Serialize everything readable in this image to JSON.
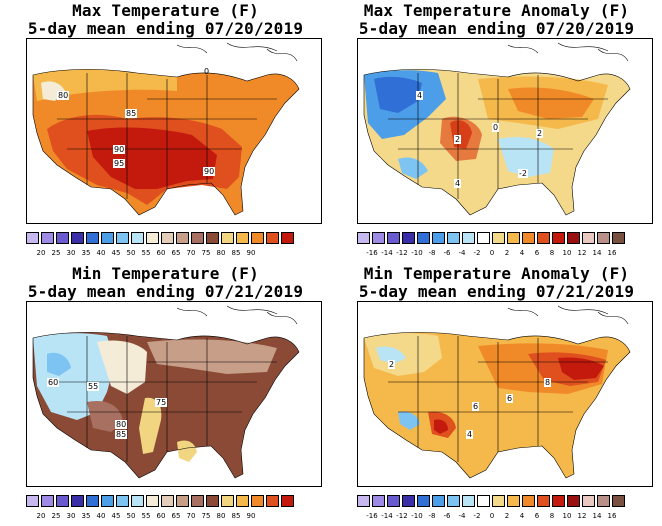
{
  "panels": [
    {
      "title_line1": "Max Temperature (F)",
      "title_line2": "5-day mean ending 07/20/2019",
      "colorbar_colors": [
        "#c7b8f0",
        "#9f8ae6",
        "#6a5ad0",
        "#3a2fa8",
        "#2f6fd6",
        "#4c9ee8",
        "#7ec4f2",
        "#b8e4f6",
        "#f5ecd8",
        "#e4cdb8",
        "#c79e88",
        "#a87060",
        "#8a4a36",
        "#f2d580",
        "#f5b84a",
        "#f08a28",
        "#e0501e",
        "#c41a0e"
      ],
      "colorbar_labels": [
        "20",
        "25",
        "30",
        "35",
        "40",
        "45",
        "50",
        "55",
        "60",
        "65",
        "70",
        "75",
        "80",
        "85",
        "90"
      ],
      "map_labels": [
        "80",
        "85",
        "90",
        "95",
        "90",
        "0"
      ]
    },
    {
      "title_line1": "Max Temperature Anomaly (F)",
      "title_line2": "5-day mean ending 07/20/2019",
      "colorbar_colors": [
        "#c7b8f0",
        "#9f8ae6",
        "#6a5ad0",
        "#3a2fa8",
        "#2f6fd6",
        "#4c9ee8",
        "#7ec4f2",
        "#b8e4f6",
        "#ffffff",
        "#f5d98a",
        "#f5b84a",
        "#f08a28",
        "#e0501e",
        "#c41a0e",
        "#9a1010",
        "#e8c8c0",
        "#b89088",
        "#7a5040"
      ],
      "colorbar_labels": [
        "-16",
        "-14",
        "-12",
        "-10",
        "-8",
        "-6",
        "-4",
        "-2",
        "0",
        "2",
        "4",
        "6",
        "8",
        "10",
        "12",
        "14",
        "16"
      ],
      "map_labels": [
        "4",
        "2",
        "0",
        "2",
        "4",
        "-2"
      ]
    },
    {
      "title_line1": "Min Temperature (F)",
      "title_line2": "5-day mean ending 07/21/2019",
      "colorbar_colors": [
        "#c7b8f0",
        "#9f8ae6",
        "#6a5ad0",
        "#3a2fa8",
        "#2f6fd6",
        "#4c9ee8",
        "#7ec4f2",
        "#b8e4f6",
        "#f5ecd8",
        "#e4cdb8",
        "#c79e88",
        "#a87060",
        "#8a4a36",
        "#f2d580",
        "#f5b84a",
        "#f08a28",
        "#e0501e",
        "#c41a0e"
      ],
      "colorbar_labels": [
        "20",
        "25",
        "30",
        "35",
        "40",
        "45",
        "50",
        "55",
        "60",
        "65",
        "70",
        "75",
        "80",
        "85",
        "90"
      ],
      "map_labels": [
        "60",
        "55",
        "75",
        "80",
        "85"
      ]
    },
    {
      "title_line1": "Min Temperature Anomaly (F)",
      "title_line2": "5-day mean ending 07/21/2019",
      "colorbar_colors": [
        "#c7b8f0",
        "#9f8ae6",
        "#6a5ad0",
        "#3a2fa8",
        "#2f6fd6",
        "#4c9ee8",
        "#7ec4f2",
        "#b8e4f6",
        "#ffffff",
        "#f5d98a",
        "#f5b84a",
        "#f08a28",
        "#e0501e",
        "#c41a0e",
        "#9a1010",
        "#e8c8c0",
        "#b89088",
        "#7a5040"
      ],
      "colorbar_labels": [
        "-16",
        "-14",
        "-12",
        "-10",
        "-8",
        "-6",
        "-4",
        "-2",
        "0",
        "2",
        "4",
        "6",
        "8",
        "10",
        "12",
        "14",
        "16"
      ],
      "map_labels": [
        "2",
        "6",
        "8",
        "4",
        "6"
      ]
    }
  ]
}
